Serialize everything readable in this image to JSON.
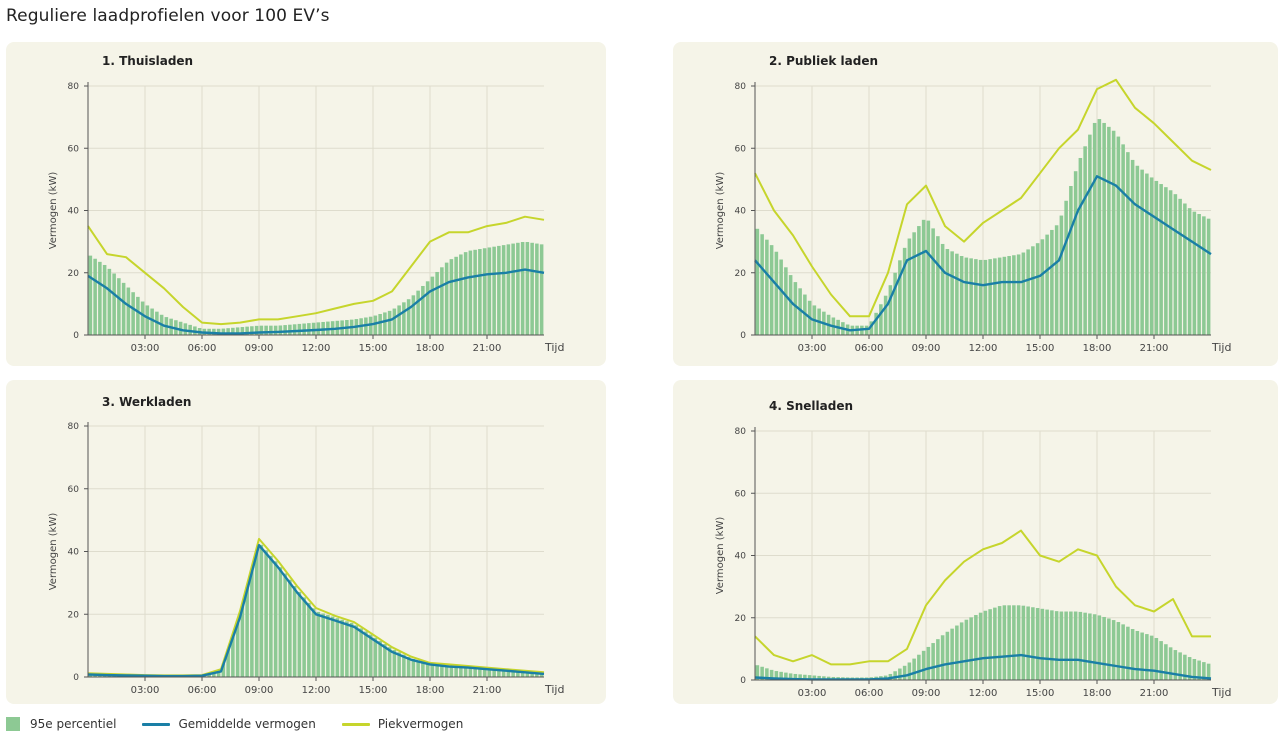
{
  "page_title": "Reguliere laadprofielen voor 100 EV’s",
  "colors": {
    "bar": "#8dc994",
    "mean": "#1a7fa6",
    "peak": "#c6d52c",
    "panel_bg": "#f5f4e8",
    "grid": "#dedccd",
    "axis": "#555555"
  },
  "legend": {
    "bar": "95e percentiel",
    "mean": "Gemiddelde vermogen",
    "peak": "Piekvermogen"
  },
  "chart_data": [
    {
      "type": "bar",
      "title": "1.   Thuisladen",
      "ylabel": "Vermogen (kW)",
      "xlabel": "Tijd",
      "ylim": [
        0,
        80
      ],
      "yticks": [
        0,
        20,
        40,
        60,
        80
      ],
      "xticks": [
        "03:00",
        "06:00",
        "09:00",
        "12:00",
        "15:00",
        "18:00",
        "21:00"
      ],
      "grid": true,
      "x_hours": [
        0,
        1,
        2,
        3,
        4,
        5,
        6,
        7,
        8,
        9,
        10,
        11,
        12,
        13,
        14,
        15,
        16,
        17,
        18,
        19,
        20,
        21,
        22,
        23,
        24
      ],
      "series": [
        {
          "name": "95e percentiel",
          "kind": "bar",
          "values": [
            26,
            22,
            16,
            10,
            6,
            4,
            2,
            2,
            2.5,
            3,
            3,
            3.5,
            4,
            4.5,
            5,
            6,
            8,
            12,
            18,
            24,
            27,
            28,
            29,
            30,
            29
          ]
        },
        {
          "name": "Gemiddelde vermogen",
          "kind": "line",
          "values": [
            19,
            15,
            10,
            6,
            3,
            1.5,
            0.8,
            0.5,
            0.5,
            0.8,
            1,
            1.3,
            1.6,
            2,
            2.6,
            3.5,
            5,
            9,
            14,
            17,
            18.5,
            19.5,
            20,
            21,
            20
          ]
        },
        {
          "name": "Piekvermogen",
          "kind": "line",
          "values": [
            35,
            26,
            25,
            20,
            15,
            9,
            4,
            3.5,
            4,
            5,
            5,
            6,
            7,
            8.5,
            10,
            11,
            14,
            22,
            30,
            33,
            33,
            35,
            36,
            38,
            37
          ]
        }
      ]
    },
    {
      "type": "bar",
      "title": "2.  Publiek laden",
      "ylabel": "Vermogen (kW)",
      "xlabel": "Tijd",
      "ylim": [
        0,
        80
      ],
      "yticks": [
        0,
        20,
        40,
        60,
        80
      ],
      "xticks": [
        "03:00",
        "06:00",
        "09:00",
        "12:00",
        "15:00",
        "18:00",
        "21:00"
      ],
      "grid": true,
      "x_hours": [
        0,
        1,
        2,
        3,
        4,
        5,
        6,
        7,
        8,
        9,
        10,
        11,
        12,
        13,
        14,
        15,
        16,
        17,
        18,
        19,
        20,
        21,
        22,
        23,
        24
      ],
      "series": [
        {
          "name": "95e percentiel",
          "kind": "bar",
          "values": [
            35,
            28,
            18,
            10,
            6,
            3,
            3,
            14,
            30,
            38,
            28,
            25,
            24,
            25,
            26,
            30,
            36,
            55,
            70,
            65,
            55,
            50,
            46,
            40,
            37
          ]
        },
        {
          "name": "Gemiddelde vermogen",
          "kind": "line",
          "values": [
            24,
            17,
            10,
            5,
            3,
            1.5,
            2,
            10,
            24,
            27,
            20,
            17,
            16,
            17,
            17,
            19,
            24,
            40,
            51,
            48,
            42,
            38,
            34,
            30,
            26
          ]
        },
        {
          "name": "Piekvermogen",
          "kind": "line",
          "values": [
            52,
            40,
            32,
            22,
            13,
            6,
            6,
            20,
            42,
            48,
            35,
            30,
            36,
            40,
            44,
            52,
            60,
            66,
            79,
            82,
            73,
            68,
            62,
            56,
            53
          ]
        }
      ]
    },
    {
      "type": "bar",
      "title": "3.  Werkladen",
      "ylabel": "Vermogen (kW)",
      "xlabel": "Tijd",
      "ylim": [
        0,
        80
      ],
      "yticks": [
        0,
        20,
        40,
        60,
        80
      ],
      "xticks": [
        "03:00",
        "06:00",
        "09:00",
        "12:00",
        "15:00",
        "18:00",
        "21:00"
      ],
      "grid": true,
      "x_hours": [
        0,
        1,
        2,
        3,
        4,
        5,
        6,
        7,
        8,
        9,
        10,
        11,
        12,
        13,
        14,
        15,
        16,
        17,
        18,
        19,
        20,
        21,
        22,
        23,
        24
      ],
      "series": [
        {
          "name": "95e percentiel",
          "kind": "bar",
          "values": [
            1,
            0.8,
            0.6,
            0.5,
            0.4,
            0.4,
            0.5,
            2,
            20,
            43,
            36,
            28,
            21,
            19,
            17,
            13,
            9,
            6,
            4,
            3.5,
            3,
            2.5,
            2,
            1.5,
            1
          ]
        },
        {
          "name": "Gemiddelde vermogen",
          "kind": "line",
          "values": [
            0.8,
            0.6,
            0.5,
            0.4,
            0.3,
            0.3,
            0.4,
            1.8,
            19,
            42,
            35,
            27,
            20,
            18,
            16,
            12,
            8,
            5.5,
            4,
            3.3,
            3,
            2.5,
            2,
            1.5,
            1
          ]
        },
        {
          "name": "Piekvermogen",
          "kind": "line",
          "values": [
            1.2,
            1,
            0.8,
            0.6,
            0.5,
            0.5,
            0.6,
            2.5,
            21,
            44,
            37,
            29,
            22,
            19.5,
            17.5,
            13.5,
            9.5,
            6.5,
            4.5,
            4,
            3.5,
            3,
            2.5,
            2,
            1.5
          ]
        }
      ]
    },
    {
      "type": "bar",
      "title": "4.  Snelladen",
      "ylabel": "Vermogen (kW)",
      "xlabel": "Tijd",
      "ylim": [
        0,
        80
      ],
      "yticks": [
        0,
        20,
        40,
        60,
        80
      ],
      "xticks": [
        "03:00",
        "06:00",
        "09:00",
        "12:00",
        "15:00",
        "18:00",
        "21:00"
      ],
      "grid": true,
      "x_hours": [
        0,
        1,
        2,
        3,
        4,
        5,
        6,
        7,
        8,
        9,
        10,
        11,
        12,
        13,
        14,
        15,
        16,
        17,
        18,
        19,
        20,
        21,
        22,
        23,
        24
      ],
      "series": [
        {
          "name": "95e percentiel",
          "kind": "bar",
          "values": [
            5,
            3,
            2,
            1.5,
            1,
            0.8,
            0.8,
            1.5,
            5,
            10,
            15,
            19,
            22,
            24,
            24,
            23,
            22,
            22,
            21,
            19,
            16,
            14,
            10,
            7,
            5
          ]
        },
        {
          "name": "Gemiddelde vermogen",
          "kind": "line",
          "values": [
            0.8,
            0.5,
            0.3,
            0.2,
            0.2,
            0.2,
            0.2,
            0.5,
            1.5,
            3.5,
            5,
            6,
            7,
            7.5,
            8,
            7,
            6.5,
            6.5,
            5.5,
            4.5,
            3.5,
            3,
            2,
            1,
            0.5
          ]
        },
        {
          "name": "Piekvermogen",
          "kind": "line",
          "values": [
            14,
            8,
            6,
            8,
            5,
            5,
            6,
            6,
            10,
            24,
            32,
            38,
            42,
            44,
            48,
            40,
            38,
            42,
            40,
            30,
            24,
            22,
            26,
            14,
            14
          ]
        }
      ]
    }
  ]
}
